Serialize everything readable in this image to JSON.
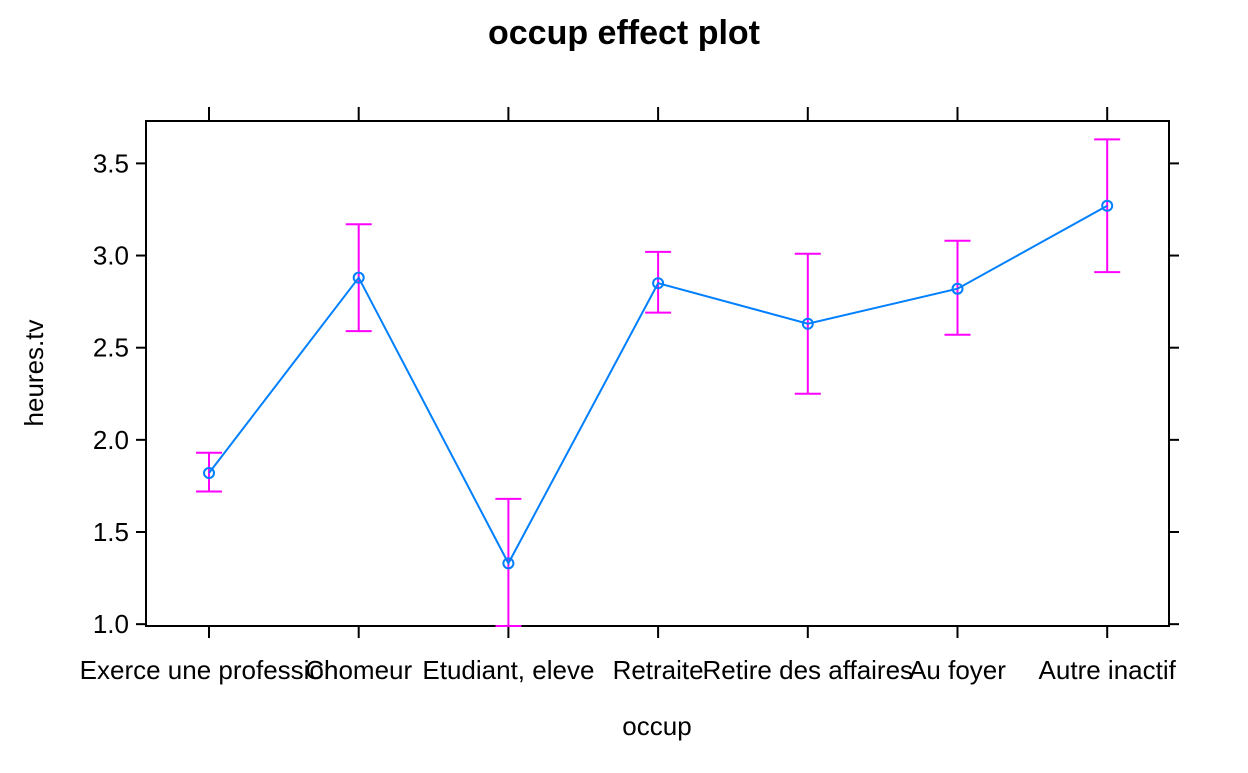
{
  "chart_data": {
    "type": "line",
    "title": "occup effect plot",
    "xlabel": "occup",
    "ylabel": "heures.tv",
    "categories": [
      "Exerce une profession",
      "Chomeur",
      "Etudiant, eleve",
      "Retraite",
      "Retire des affaires",
      "Au foyer",
      "Autre inactif"
    ],
    "series": [
      {
        "values": [
          1.82,
          2.88,
          1.33,
          2.85,
          2.63,
          2.82,
          3.27
        ],
        "lower": [
          1.72,
          2.59,
          0.99,
          2.69,
          2.25,
          2.57,
          2.91
        ],
        "upper": [
          1.93,
          3.17,
          1.68,
          3.02,
          3.01,
          3.08,
          3.63
        ]
      }
    ],
    "ylim": [
      0.99,
      3.73
    ],
    "yticks": [
      "1.0",
      "1.5",
      "2.0",
      "2.5",
      "3.0",
      "3.5"
    ],
    "grid": false,
    "colors": {
      "line": "#0080ff",
      "error_bar": "#ff00ff",
      "axis": "#000000"
    }
  }
}
